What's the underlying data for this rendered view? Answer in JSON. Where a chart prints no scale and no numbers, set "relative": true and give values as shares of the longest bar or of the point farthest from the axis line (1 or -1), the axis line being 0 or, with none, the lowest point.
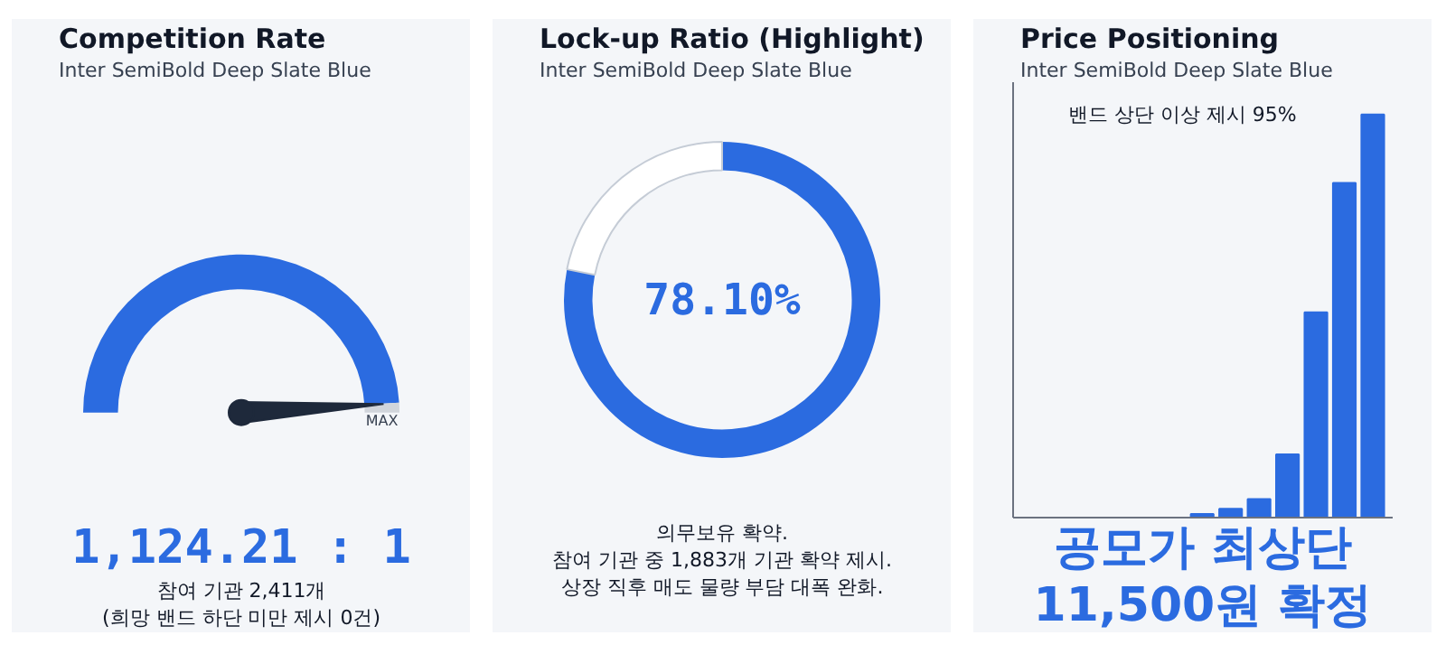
{
  "chart_data": [
    {
      "type": "donut",
      "title": "Competition Rate",
      "subtitle": "Inter SemiBold Deep Slate Blue",
      "categories": [
        null,
        "MAX"
      ],
      "values": [
        98,
        2
      ],
      "colors": [
        "#2b6be0",
        "#d1d5db"
      ],
      "needle": "MAX",
      "annotations": [
        "1,124.21 : 1",
        "참여 기관 2,411개",
        "(희망 밴드 하단 미만 제시 0건)"
      ]
    },
    {
      "type": "donut",
      "title": "Lock-up Ratio (Highlight)",
      "subtitle": "Inter SemiBold Deep Slate Blue",
      "categories": [
        null,
        null
      ],
      "values": [
        78.1,
        21.9
      ],
      "colors": [
        "#2b6be0",
        "#ffffff"
      ],
      "annotations": [
        "78.10%",
        "의무보유 확약.",
        "참여 기관 중 1,883개 기관 확약 제시.",
        "상장 직후 매도 물량 부담 대폭 완화."
      ]
    },
    {
      "type": "bar",
      "title": "Price Positioning",
      "subtitle": "Inter SemiBold Deep Slate Blue",
      "relative": true,
      "categories": [
        null,
        null,
        null,
        null,
        null,
        null,
        null
      ],
      "values": [
        0.009,
        0.022,
        0.046,
        0.157,
        0.509,
        0.83,
        1
      ],
      "color": "#2b6be0",
      "annotations": [
        "밴드 상단 이상 제시 95%",
        "공모가 최상단",
        "11,500원 확정"
      ]
    }
  ]
}
